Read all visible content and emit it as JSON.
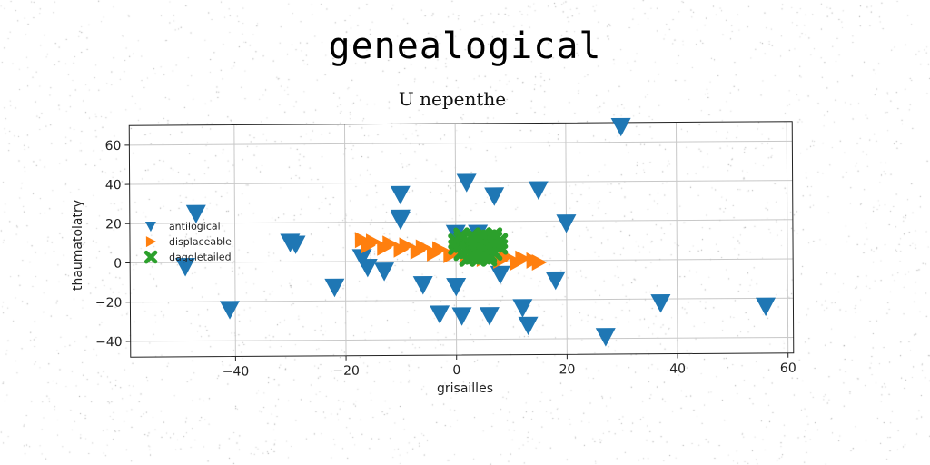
{
  "suptitle": "genealogical",
  "chart_data": {
    "type": "scatter",
    "title": "U nepenthe",
    "xlabel": "grisailles",
    "ylabel": "thaumatolatry",
    "xlim": [
      -59,
      61
    ],
    "ylim": [
      -48,
      70
    ],
    "xticks": [
      -40,
      -20,
      0,
      20,
      40,
      60
    ],
    "yticks": [
      -40,
      -20,
      0,
      20,
      40,
      60
    ],
    "grid": true,
    "legend_position": "center-left",
    "series": [
      {
        "name": "antilogical",
        "marker": "triangle-down",
        "color": "#1f77b4",
        "x": [
          30,
          2,
          15,
          -10,
          7,
          -10,
          -47,
          20,
          -10,
          -30,
          0,
          4,
          -29,
          -17,
          -16,
          -13,
          -22,
          -6,
          0,
          8,
          18,
          -41,
          -3,
          1,
          6,
          12,
          13,
          27,
          37,
          56,
          -49
        ],
        "y": [
          68,
          40,
          36,
          34,
          33,
          21,
          25,
          19,
          22,
          10,
          14,
          14,
          9,
          2,
          -3,
          -5,
          -13,
          -12,
          -13,
          -7,
          -10,
          -24,
          -27,
          -28,
          -28,
          -24,
          -33,
          -39,
          -22,
          -24,
          -2
        ]
      },
      {
        "name": "displaceable",
        "marker": "triangle-right",
        "color": "#ff7f0e",
        "x": [
          -17,
          -15,
          -12,
          -9,
          -6,
          -3,
          0,
          3,
          6,
          9,
          12,
          15,
          -16,
          -13,
          -10,
          -7,
          -4,
          -1,
          2,
          5,
          8,
          11,
          14
        ],
        "y": [
          11,
          10,
          9,
          8,
          7,
          6,
          5,
          4,
          3,
          2,
          1,
          -1,
          8,
          7,
          6,
          5,
          4,
          3,
          2,
          1,
          0,
          -1,
          0
        ]
      },
      {
        "name": "daggletailed",
        "marker": "x",
        "color": "#2ca02c",
        "x": [
          0,
          1,
          2,
          3,
          4,
          5,
          6,
          7,
          8,
          0,
          1,
          2,
          3,
          4,
          5,
          6,
          7,
          8,
          1,
          2,
          3,
          4,
          5,
          6,
          7,
          2,
          3,
          4,
          5,
          6,
          1,
          3,
          5,
          7
        ],
        "y": [
          10,
          11,
          10,
          12,
          11,
          10,
          12,
          11,
          10,
          7,
          8,
          6,
          7,
          8,
          6,
          7,
          8,
          7,
          4,
          5,
          3,
          4,
          5,
          3,
          4,
          1,
          2,
          1,
          2,
          1,
          13,
          13,
          13,
          13
        ]
      }
    ]
  }
}
